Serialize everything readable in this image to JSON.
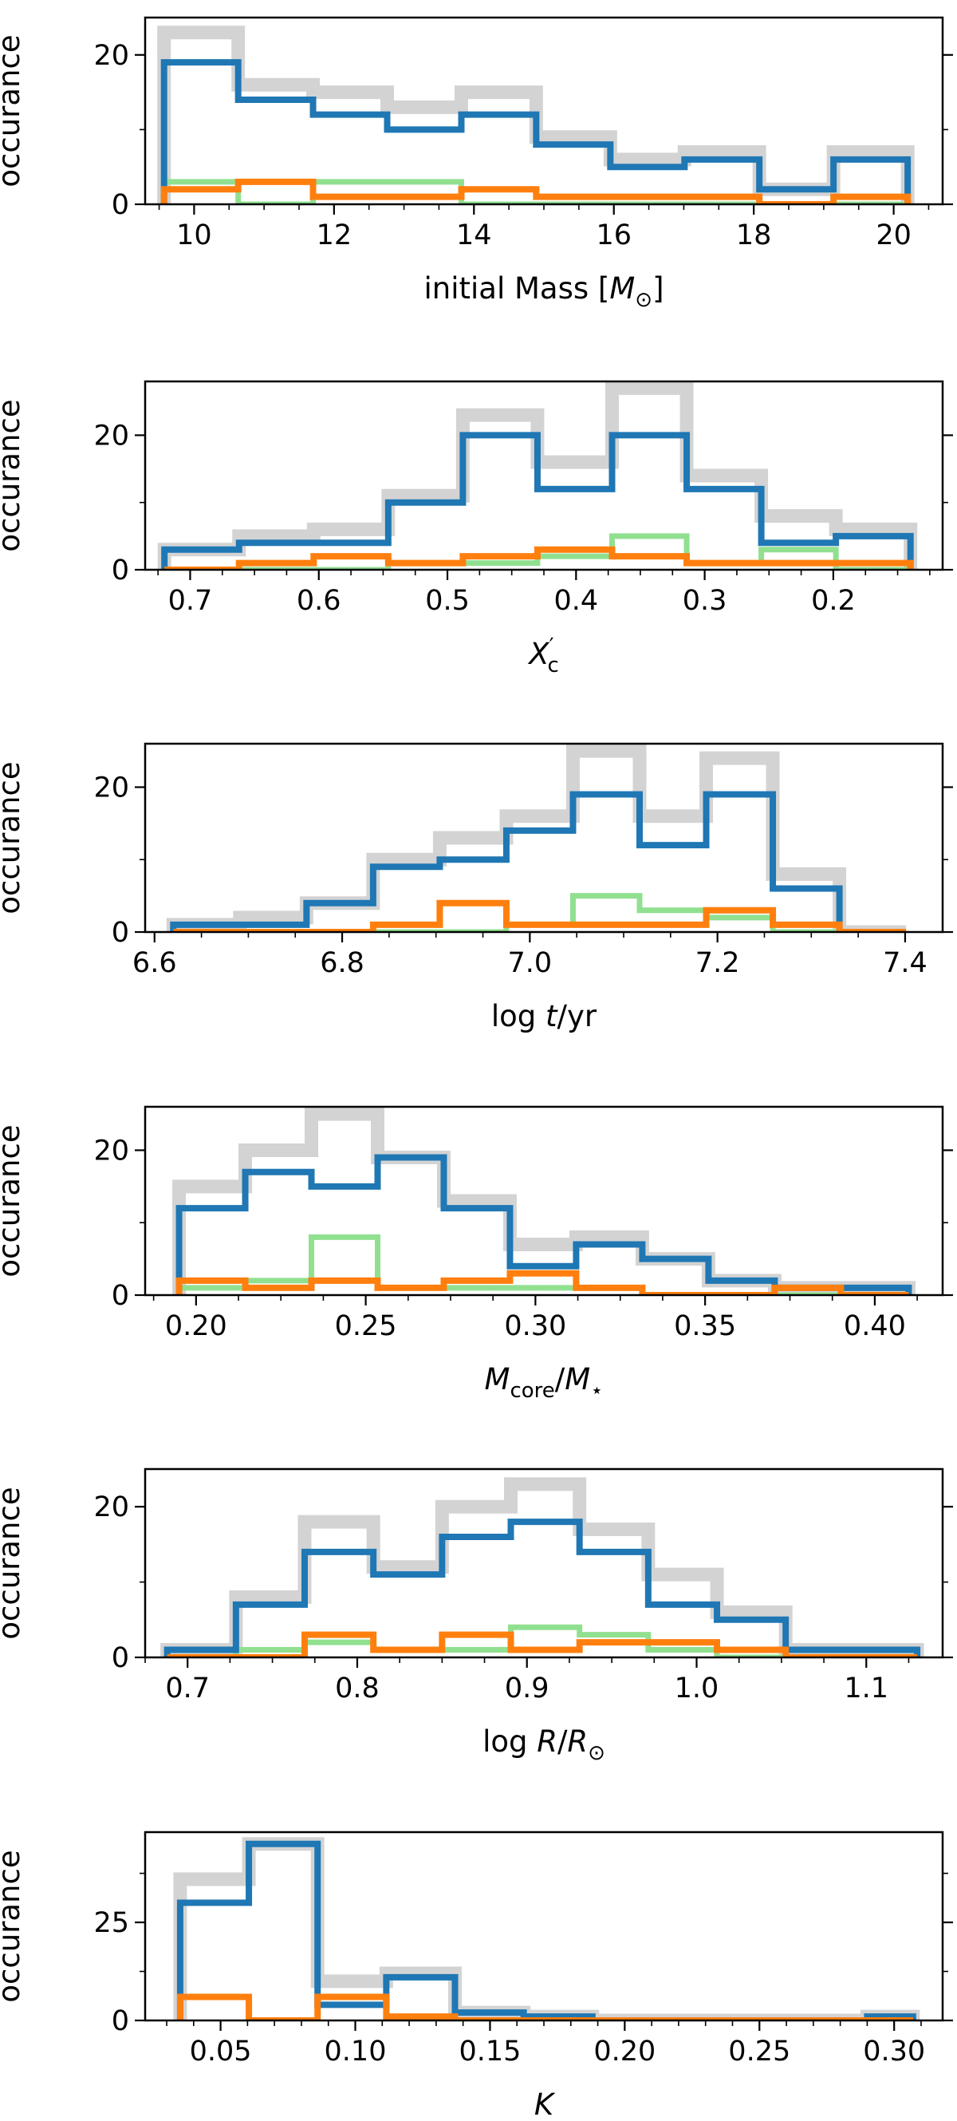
{
  "colors": {
    "total": "#d3d3d3",
    "blue": "#1f77b4",
    "green": "#90e090",
    "orange": "#ff7f0e",
    "axis": "#000000"
  },
  "ylabel": "occurance",
  "chart_data": [
    {
      "type": "histogram-step",
      "xlabel": "initial Mass [M⊙]",
      "xlabel_math": {
        "pre": "initial Mass [",
        "main": "M",
        "sub": "⊙",
        "post": "]"
      },
      "ylabel": "occurance",
      "xlim": [
        9.3,
        20.7
      ],
      "ylim": [
        0,
        25
      ],
      "xticks": [
        10,
        12,
        14,
        16,
        18,
        20
      ],
      "xtick_labels": [
        "10",
        "12",
        "14",
        "16",
        "18",
        "20"
      ],
      "xminor_step": 0.5,
      "yticks": [
        0,
        20
      ],
      "ytick_labels": [
        "0",
        "20"
      ],
      "yminor_step": 10,
      "bin_edges": [
        9.57,
        10.63,
        11.7,
        12.76,
        13.82,
        14.89,
        15.95,
        17.01,
        18.08,
        19.14,
        20.2
      ],
      "series": [
        {
          "name": "total",
          "color_key": "total",
          "values": [
            23,
            16,
            15,
            13,
            15,
            9,
            6,
            7,
            2,
            7
          ]
        },
        {
          "name": "blue",
          "color_key": "blue",
          "values": [
            19,
            14,
            12,
            10,
            12,
            8,
            5,
            6,
            2,
            6
          ]
        },
        {
          "name": "green",
          "color_key": "green",
          "values": [
            3,
            0,
            3,
            3,
            0,
            0,
            0,
            0,
            0,
            0
          ]
        },
        {
          "name": "orange",
          "color_key": "orange",
          "values": [
            2,
            3,
            1,
            1,
            2,
            1,
            1,
            1,
            0,
            1
          ]
        }
      ]
    },
    {
      "type": "histogram-step",
      "xlabel": "X'c",
      "xlabel_math": {
        "main": "X",
        "sup": "′",
        "sub": "c"
      },
      "ylabel": "occurance",
      "xlim": [
        0.735,
        0.115
      ],
      "ylim": [
        0,
        28
      ],
      "xticks": [
        0.7,
        0.6,
        0.5,
        0.4,
        0.3,
        0.2
      ],
      "xtick_labels": [
        "0.7",
        "0.6",
        "0.5",
        "0.4",
        "0.3",
        "0.2"
      ],
      "xminor_step": 0.025,
      "yticks": [
        0,
        20
      ],
      "ytick_labels": [
        "0",
        "20"
      ],
      "yminor_step": 10,
      "bin_edges": [
        0.72,
        0.662,
        0.604,
        0.546,
        0.488,
        0.43,
        0.372,
        0.314,
        0.256,
        0.198,
        0.14
      ],
      "series": [
        {
          "name": "total",
          "color_key": "total",
          "values": [
            3,
            5,
            6,
            11,
            23,
            16,
            27,
            14,
            8,
            6
          ]
        },
        {
          "name": "blue",
          "color_key": "blue",
          "values": [
            3,
            4,
            4,
            10,
            20,
            12,
            20,
            12,
            4,
            5
          ]
        },
        {
          "name": "green",
          "color_key": "green",
          "values": [
            0,
            0,
            0,
            1,
            1,
            2,
            5,
            1,
            3,
            0
          ]
        },
        {
          "name": "orange",
          "color_key": "orange",
          "values": [
            0,
            1,
            2,
            1,
            2,
            3,
            2,
            1,
            1,
            1
          ]
        }
      ]
    },
    {
      "type": "histogram-step",
      "xlabel": "log t/yr",
      "xlabel_math": {
        "pre": "log ",
        "main": "t",
        "post": "/yr"
      },
      "ylabel": "occurance",
      "xlim": [
        6.59,
        7.44
      ],
      "ylim": [
        0,
        26
      ],
      "xticks": [
        6.6,
        6.8,
        7.0,
        7.2,
        7.4
      ],
      "xtick_labels": [
        "6.6",
        "6.8",
        "7.0",
        "7.2",
        "7.4"
      ],
      "xminor_step": 0.05,
      "yticks": [
        0,
        20
      ],
      "ytick_labels": [
        "0",
        "20"
      ],
      "yminor_step": 10,
      "bin_edges": [
        6.62,
        6.691,
        6.762,
        6.833,
        6.904,
        6.975,
        7.046,
        7.117,
        7.188,
        7.259,
        7.33,
        7.401
      ],
      "series": [
        {
          "name": "total",
          "color_key": "total",
          "values": [
            1,
            2,
            4,
            10,
            13,
            16,
            25,
            16,
            24,
            8,
            0
          ]
        },
        {
          "name": "blue",
          "color_key": "blue",
          "values": [
            1,
            1,
            4,
            9,
            10,
            14,
            19,
            12,
            19,
            6,
            0
          ]
        },
        {
          "name": "green",
          "color_key": "green",
          "values": [
            0,
            0,
            0,
            0,
            0,
            1,
            5,
            3,
            2,
            0,
            0
          ]
        },
        {
          "name": "orange",
          "color_key": "orange",
          "values": [
            0,
            0,
            0,
            1,
            4,
            1,
            1,
            1,
            3,
            1,
            0
          ]
        }
      ]
    },
    {
      "type": "histogram-step",
      "xlabel": "Mcore/M⋆",
      "xlabel_math": {
        "main": "M",
        "sub": "core",
        "post": "/",
        "main2": "M",
        "sub2": "⋆"
      },
      "ylabel": "occurance",
      "xlim": [
        0.185,
        0.42
      ],
      "ylim": [
        0,
        26
      ],
      "xticks": [
        0.2,
        0.25,
        0.3,
        0.35,
        0.4
      ],
      "xtick_labels": [
        "0.20",
        "0.25",
        "0.30",
        "0.35",
        "0.40"
      ],
      "xminor_step": 0.0125,
      "yticks": [
        0,
        20
      ],
      "ytick_labels": [
        "0",
        "20"
      ],
      "yminor_step": 10,
      "bin_edges": [
        0.195,
        0.2145,
        0.234,
        0.2535,
        0.273,
        0.2925,
        0.312,
        0.3315,
        0.351,
        0.3705,
        0.39,
        0.41
      ],
      "series": [
        {
          "name": "total",
          "color_key": "total",
          "values": [
            15,
            20,
            25,
            19,
            13,
            7,
            8,
            5,
            2,
            1,
            1
          ]
        },
        {
          "name": "blue",
          "color_key": "blue",
          "values": [
            12,
            17,
            15,
            19,
            12,
            4,
            7,
            5,
            2,
            1,
            1
          ]
        },
        {
          "name": "green",
          "color_key": "green",
          "values": [
            1,
            2,
            8,
            1,
            1,
            1,
            1,
            0,
            0,
            0,
            0
          ]
        },
        {
          "name": "orange",
          "color_key": "orange",
          "values": [
            2,
            1,
            2,
            1,
            2,
            3,
            1,
            0,
            0,
            1,
            0
          ]
        }
      ]
    },
    {
      "type": "histogram-step",
      "xlabel": "log R/R⊙",
      "xlabel_math": {
        "pre": "log ",
        "main": "R",
        "post": "/",
        "main2": "R",
        "sub2": "⊙"
      },
      "ylabel": "occurance",
      "xlim": [
        0.675,
        1.145
      ],
      "ylim": [
        0,
        25
      ],
      "xticks": [
        0.7,
        0.8,
        0.9,
        1.0,
        1.1
      ],
      "xtick_labels": [
        "0.7",
        "0.8",
        "0.9",
        "1.0",
        "1.1"
      ],
      "xminor_step": 0.025,
      "yticks": [
        0,
        20
      ],
      "ytick_labels": [
        "0",
        "20"
      ],
      "yminor_step": 10,
      "bin_edges": [
        0.688,
        0.7285,
        0.769,
        0.8095,
        0.85,
        0.8905,
        0.931,
        0.9715,
        1.012,
        1.0525,
        1.093,
        1.13
      ],
      "series": [
        {
          "name": "total",
          "color_key": "total",
          "values": [
            1,
            8,
            18,
            12,
            20,
            23,
            17,
            11,
            6,
            1,
            1
          ]
        },
        {
          "name": "blue",
          "color_key": "blue",
          "values": [
            1,
            7,
            14,
            11,
            16,
            18,
            14,
            7,
            5,
            1,
            1
          ]
        },
        {
          "name": "green",
          "color_key": "green",
          "values": [
            0,
            1,
            2,
            1,
            1,
            4,
            3,
            1,
            0,
            0,
            0
          ]
        },
        {
          "name": "orange",
          "color_key": "orange",
          "values": [
            0,
            0,
            3,
            1,
            3,
            1,
            2,
            2,
            1,
            0,
            0
          ]
        }
      ]
    },
    {
      "type": "histogram-step",
      "xlabel": "K",
      "xlabel_math": {
        "main": "K"
      },
      "ylabel": "occurance",
      "xlim": [
        0.022,
        0.318
      ],
      "ylim": [
        0,
        48
      ],
      "xticks": [
        0.05,
        0.1,
        0.15,
        0.2,
        0.25,
        0.3
      ],
      "xtick_labels": [
        "0.05",
        "0.10",
        "0.15",
        "0.20",
        "0.25",
        "0.30"
      ],
      "xminor_step": 0.01,
      "yticks": [
        0,
        25
      ],
      "ytick_labels": [
        "0",
        "25"
      ],
      "yminor_step": 12.5,
      "bin_edges": [
        0.035,
        0.0605,
        0.086,
        0.1115,
        0.137,
        0.1625,
        0.188,
        0.2135,
        0.239,
        0.2645,
        0.29,
        0.307
      ],
      "series": [
        {
          "name": "total",
          "color_key": "total",
          "values": [
            36,
            45,
            10,
            12,
            2,
            1,
            0,
            0,
            0,
            0,
            1
          ]
        },
        {
          "name": "blue",
          "color_key": "blue",
          "values": [
            30,
            45,
            4,
            11,
            2,
            1,
            0,
            0,
            0,
            0,
            1
          ]
        },
        {
          "name": "orange",
          "color_key": "orange",
          "values": [
            6,
            0,
            6,
            1,
            0,
            0,
            0,
            0,
            0,
            0,
            0
          ]
        }
      ]
    }
  ]
}
